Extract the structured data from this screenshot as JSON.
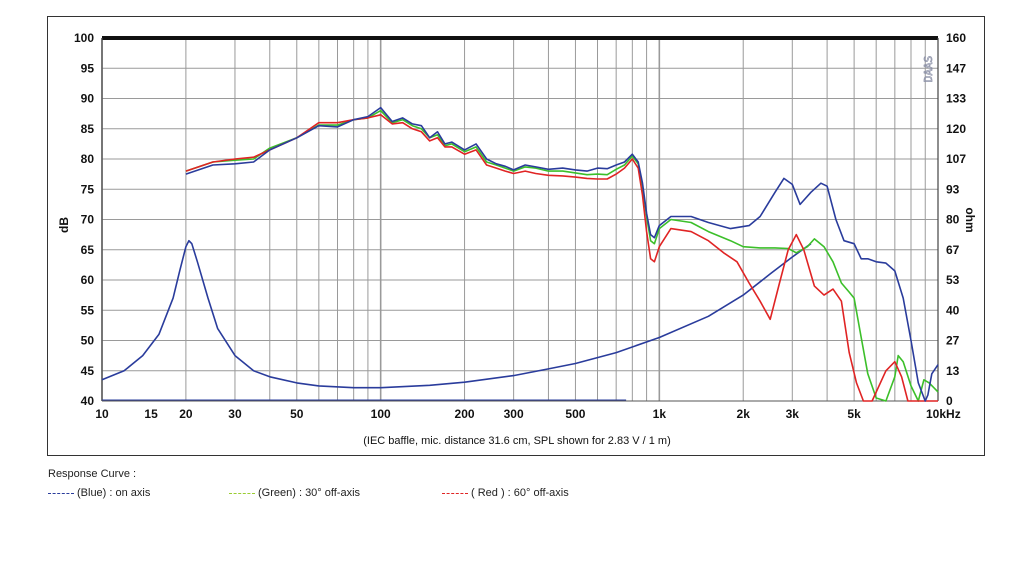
{
  "colors": {
    "blue": "#2a3c9c",
    "green": "#3cbf2a",
    "red": "#e02424",
    "grid": "#9a9a9a",
    "legend_green": "#9acd32"
  },
  "logo_text": "DAAS",
  "note": "(IEC baffle, mic. distance 31.6 cm, SPL shown for 2.83 V / 1 m)",
  "legend": {
    "title": "Response Curve :",
    "items": [
      {
        "label": "(Blue)  : on axis",
        "color": "#2a3c9c"
      },
      {
        "label": "(Green) : 30° off-axis",
        "color": "#9acd32"
      },
      {
        "label": "( Red ) : 60° off-axis",
        "color": "#e02424"
      }
    ]
  },
  "chart_data": {
    "type": "line",
    "xscale": "log",
    "xlim": [
      10,
      10000
    ],
    "ylim": [
      40,
      100
    ],
    "ylabel": "dB",
    "y2label": "ohm",
    "y2lim": [
      0,
      160
    ],
    "grid": true,
    "x_ticks": [
      {
        "v": 10,
        "label": "10"
      },
      {
        "v": 15,
        "label": "15"
      },
      {
        "v": 20,
        "label": "20"
      },
      {
        "v": 30,
        "label": "30"
      },
      {
        "v": 50,
        "label": "50"
      },
      {
        "v": 100,
        "label": "100"
      },
      {
        "v": 200,
        "label": "200"
      },
      {
        "v": 300,
        "label": "300"
      },
      {
        "v": 500,
        "label": "500"
      },
      {
        "v": 1000,
        "label": "1k"
      },
      {
        "v": 2000,
        "label": "2k"
      },
      {
        "v": 3000,
        "label": "3k"
      },
      {
        "v": 5000,
        "label": "5k"
      },
      {
        "v": 10000,
        "label": "10kHz"
      }
    ],
    "y_ticks": [
      "100",
      "95",
      "90",
      "85",
      "80",
      "75",
      "70",
      "65",
      "60",
      "55",
      "50",
      "45",
      "40"
    ],
    "y2_ticks": [
      "160",
      "147",
      "133",
      "120",
      "107",
      "93",
      "80",
      "67",
      "53",
      "40",
      "27",
      "13",
      "0"
    ],
    "series": [
      {
        "color": "#2a3c9c",
        "points": [
          [
            20,
            77.5
          ],
          [
            25,
            79
          ],
          [
            30,
            79.2
          ],
          [
            35,
            79.5
          ],
          [
            40,
            81.5
          ],
          [
            50,
            83.5
          ],
          [
            60,
            85.5
          ],
          [
            70,
            85.3
          ],
          [
            80,
            86.5
          ],
          [
            90,
            87
          ],
          [
            100,
            88.5
          ],
          [
            110,
            86.2
          ],
          [
            120,
            86.8
          ],
          [
            130,
            85.8
          ],
          [
            140,
            85.5
          ],
          [
            150,
            83.5
          ],
          [
            160,
            84.5
          ],
          [
            170,
            82.5
          ],
          [
            180,
            82.8
          ],
          [
            200,
            81.5
          ],
          [
            220,
            82.5
          ],
          [
            240,
            80
          ],
          [
            260,
            79.2
          ],
          [
            280,
            78.8
          ],
          [
            300,
            78.2
          ],
          [
            330,
            79
          ],
          [
            360,
            78.7
          ],
          [
            400,
            78.3
          ],
          [
            450,
            78.5
          ],
          [
            500,
            78.2
          ],
          [
            550,
            78
          ],
          [
            600,
            78.5
          ],
          [
            650,
            78.4
          ],
          [
            700,
            79
          ],
          [
            750,
            79.5
          ],
          [
            800,
            80.8
          ],
          [
            840,
            79.5
          ],
          [
            870,
            76
          ],
          [
            900,
            71
          ],
          [
            930,
            67.5
          ],
          [
            960,
            67
          ],
          [
            1000,
            69
          ],
          [
            1100,
            70.5
          ],
          [
            1300,
            70.5
          ],
          [
            1500,
            69.5
          ],
          [
            1800,
            68.5
          ],
          [
            2100,
            69
          ],
          [
            2300,
            70.5
          ],
          [
            2600,
            74.5
          ],
          [
            2800,
            76.8
          ],
          [
            3000,
            75.8
          ],
          [
            3200,
            72.5
          ],
          [
            3500,
            74.5
          ],
          [
            3800,
            76
          ],
          [
            4000,
            75.5
          ],
          [
            4300,
            70
          ],
          [
            4600,
            66.5
          ],
          [
            5000,
            66
          ],
          [
            5300,
            63.5
          ],
          [
            5600,
            63.5
          ],
          [
            6000,
            63
          ],
          [
            6500,
            62.8
          ],
          [
            7000,
            61.5
          ],
          [
            7500,
            57
          ],
          [
            8000,
            50
          ],
          [
            8500,
            43
          ],
          [
            9000,
            40
          ],
          [
            9200,
            41
          ],
          [
            9500,
            44.5
          ],
          [
            10000,
            46
          ]
        ]
      },
      {
        "color": "#3cbf2a",
        "points": [
          [
            20,
            78
          ],
          [
            25,
            79.5
          ],
          [
            30,
            79.8
          ],
          [
            35,
            80
          ],
          [
            40,
            81.8
          ],
          [
            50,
            83.5
          ],
          [
            60,
            85.6
          ],
          [
            70,
            85.6
          ],
          [
            80,
            86.5
          ],
          [
            90,
            86.8
          ],
          [
            100,
            88
          ],
          [
            110,
            86
          ],
          [
            120,
            86.5
          ],
          [
            130,
            85.5
          ],
          [
            140,
            85
          ],
          [
            150,
            83.5
          ],
          [
            160,
            84
          ],
          [
            170,
            82.2
          ],
          [
            180,
            82.5
          ],
          [
            200,
            81.2
          ],
          [
            220,
            82
          ],
          [
            240,
            79.5
          ],
          [
            260,
            79
          ],
          [
            280,
            78.5
          ],
          [
            300,
            78
          ],
          [
            330,
            78.7
          ],
          [
            360,
            78.5
          ],
          [
            400,
            78
          ],
          [
            450,
            78
          ],
          [
            500,
            77.7
          ],
          [
            550,
            77.4
          ],
          [
            600,
            77.5
          ],
          [
            650,
            77.4
          ],
          [
            700,
            78.3
          ],
          [
            750,
            79
          ],
          [
            800,
            80.5
          ],
          [
            840,
            79.2
          ],
          [
            870,
            75.5
          ],
          [
            900,
            70.5
          ],
          [
            930,
            66.5
          ],
          [
            960,
            66
          ],
          [
            1000,
            68.5
          ],
          [
            1100,
            70
          ],
          [
            1300,
            69.5
          ],
          [
            1500,
            68
          ],
          [
            1800,
            66.5
          ],
          [
            2000,
            65.5
          ],
          [
            2300,
            65.3
          ],
          [
            2600,
            65.3
          ],
          [
            2900,
            65.2
          ],
          [
            3100,
            64.5
          ],
          [
            3400,
            65.5
          ],
          [
            3600,
            66.8
          ],
          [
            3900,
            65.5
          ],
          [
            4200,
            63
          ],
          [
            4500,
            59.5
          ],
          [
            4800,
            58
          ],
          [
            5000,
            57
          ],
          [
            5300,
            50.5
          ],
          [
            5600,
            44.5
          ],
          [
            6000,
            40.5
          ],
          [
            6500,
            40
          ],
          [
            7000,
            44
          ],
          [
            7200,
            47.5
          ],
          [
            7500,
            46.5
          ],
          [
            8000,
            42.5
          ],
          [
            8500,
            40
          ],
          [
            8900,
            43.5
          ],
          [
            9300,
            43
          ],
          [
            10000,
            41.5
          ]
        ]
      },
      {
        "color": "#e02424",
        "points": [
          [
            20,
            78
          ],
          [
            25,
            79.5
          ],
          [
            30,
            80
          ],
          [
            35,
            80.3
          ],
          [
            40,
            81.5
          ],
          [
            50,
            83.5
          ],
          [
            60,
            86
          ],
          [
            70,
            86
          ],
          [
            80,
            86.5
          ],
          [
            90,
            86.8
          ],
          [
            100,
            87.3
          ],
          [
            110,
            85.8
          ],
          [
            120,
            86
          ],
          [
            130,
            85
          ],
          [
            140,
            84.5
          ],
          [
            150,
            83
          ],
          [
            160,
            83.5
          ],
          [
            170,
            82
          ],
          [
            180,
            82
          ],
          [
            200,
            80.8
          ],
          [
            220,
            81.5
          ],
          [
            240,
            79
          ],
          [
            260,
            78.5
          ],
          [
            280,
            78
          ],
          [
            300,
            77.6
          ],
          [
            330,
            78
          ],
          [
            360,
            77.6
          ],
          [
            400,
            77.3
          ],
          [
            450,
            77.2
          ],
          [
            500,
            77
          ],
          [
            550,
            76.8
          ],
          [
            600,
            76.7
          ],
          [
            650,
            76.7
          ],
          [
            700,
            77.5
          ],
          [
            750,
            78.5
          ],
          [
            800,
            80
          ],
          [
            840,
            78.5
          ],
          [
            870,
            74
          ],
          [
            900,
            68
          ],
          [
            930,
            63.5
          ],
          [
            960,
            63
          ],
          [
            1000,
            65.5
          ],
          [
            1100,
            68.5
          ],
          [
            1300,
            68
          ],
          [
            1500,
            66.5
          ],
          [
            1700,
            64.5
          ],
          [
            1900,
            63
          ],
          [
            2100,
            59.5
          ],
          [
            2300,
            56.5
          ],
          [
            2500,
            53.5
          ],
          [
            2700,
            59.5
          ],
          [
            2900,
            65
          ],
          [
            3100,
            67.5
          ],
          [
            3300,
            65
          ],
          [
            3600,
            59
          ],
          [
            3900,
            57.5
          ],
          [
            4200,
            58.5
          ],
          [
            4500,
            56.5
          ],
          [
            4800,
            48
          ],
          [
            5100,
            43
          ],
          [
            5400,
            40
          ],
          [
            5800,
            40
          ],
          [
            6500,
            45
          ],
          [
            7000,
            46.5
          ],
          [
            7400,
            44
          ],
          [
            7800,
            40
          ],
          [
            10000,
            40
          ]
        ]
      },
      {
        "color": "#2a3c9c",
        "points": [
          [
            10,
            43.5
          ],
          [
            12,
            45
          ],
          [
            14,
            47.5
          ],
          [
            16,
            51
          ],
          [
            18,
            57
          ],
          [
            19,
            61.5
          ],
          [
            20,
            65.5
          ],
          [
            20.5,
            66.5
          ],
          [
            21,
            66
          ],
          [
            22,
            63
          ],
          [
            24,
            57
          ],
          [
            26,
            52
          ],
          [
            30,
            47.5
          ],
          [
            35,
            45
          ],
          [
            40,
            44
          ],
          [
            50,
            43
          ],
          [
            60,
            42.5
          ],
          [
            80,
            42.2
          ],
          [
            100,
            42.2
          ],
          [
            150,
            42.6
          ],
          [
            200,
            43.1
          ],
          [
            300,
            44.2
          ],
          [
            400,
            45.3
          ],
          [
            500,
            46.2
          ],
          [
            700,
            48
          ],
          [
            1000,
            50.5
          ],
          [
            1500,
            54
          ],
          [
            2000,
            57.5
          ],
          [
            2500,
            61
          ],
          [
            3000,
            63.8
          ],
          [
            3500,
            66
          ]
        ]
      }
    ]
  }
}
